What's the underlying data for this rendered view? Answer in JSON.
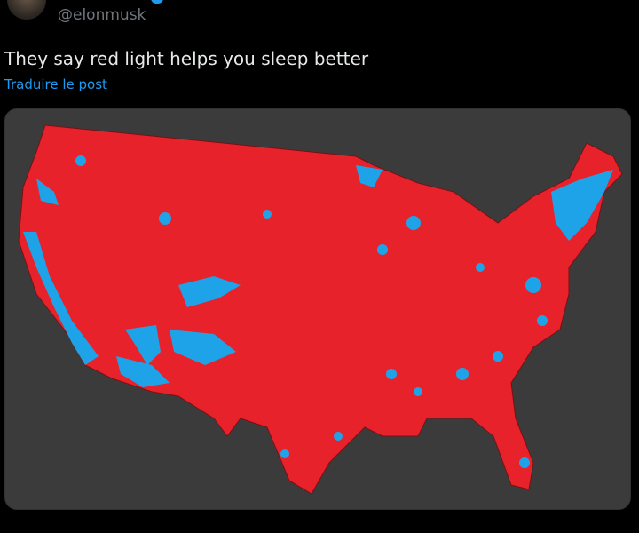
{
  "tweet": {
    "handle": "@elonmusk",
    "text": "They say red light helps you sleep better",
    "translate_link": "Traduire le post"
  }
}
